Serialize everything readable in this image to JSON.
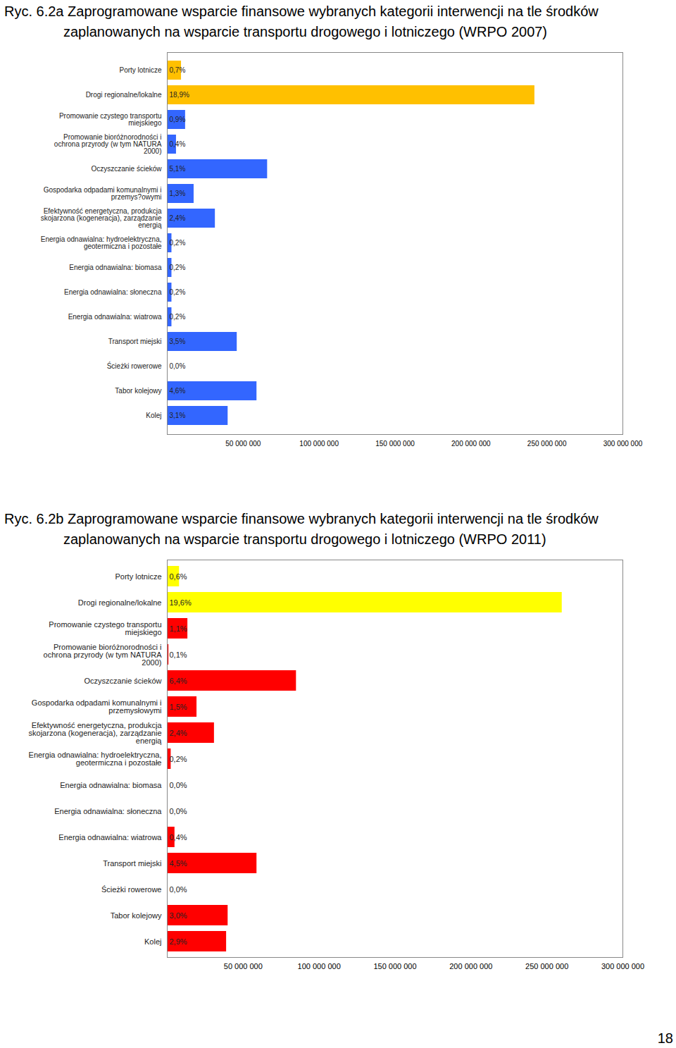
{
  "chart_data": [
    {
      "type": "bar",
      "orientation": "horizontal",
      "title": "Ryc. 6.2a Zaprogramowane wsparcie finansowe wybranych kategorii interwencji na tle środków zaplanowanych na wsparcie transportu drogowego i lotniczego (WRPO 2007)",
      "categories": [
        "Porty lotnicze",
        "Drogi regionalne/lokalne",
        "Promowanie czystego transportu miejskiego",
        "Promowanie bioróżnorodności i ochrona przyrody (w tym NATURA 2000)",
        "Oczyszczanie ścieków",
        "Gospodarka odpadami komunalnymi i przemys?owymi",
        "Efektywność energetyczna, produkcja skojarzona (kogeneracja), zarządzanie energią",
        "Energia odnawialna: hydroelektryczna, geotermiczna i pozostałe",
        "Energia odnawialna: biomasa",
        "Energia odnawialna: słoneczna",
        "Energia odnawialna: wiatrowa",
        "Transport miejski",
        "Ścieżki rowerowe",
        "Tabor kolejowy",
        "Kolej"
      ],
      "values": [
        9300000,
        242000000,
        12000000,
        6000000,
        66000000,
        17600000,
        31600000,
        3000000,
        3000000,
        3000000,
        3000000,
        46000000,
        0,
        59000000,
        40000000
      ],
      "share_labels": [
        "0,7%",
        "18,9%",
        "0,9%",
        "0,4%",
        "5,1%",
        "1,3%",
        "2,4%",
        "0,2%",
        "0,2%",
        "0,2%",
        "0,2%",
        "3,5%",
        "0,0%",
        "4,6%",
        "3,1%"
      ],
      "colors": [
        "#ffc000",
        "#ffc000",
        "#3366ff",
        "#3366ff",
        "#3366ff",
        "#3366ff",
        "#3366ff",
        "#3366ff",
        "#3366ff",
        "#3366ff",
        "#3366ff",
        "#3366ff",
        "#3366ff",
        "#3366ff",
        "#3366ff"
      ],
      "xlim": [
        0,
        300000000
      ],
      "xticks": [
        {
          "value": 50000000,
          "label": "50 000 000"
        },
        {
          "value": 100000000,
          "label": "100 000 000"
        },
        {
          "value": 150000000,
          "label": "150 000 000"
        },
        {
          "value": 200000000,
          "label": "200 000 000"
        },
        {
          "value": 250000000,
          "label": "250 000 000"
        },
        {
          "value": 300000000,
          "label": "300 000 000"
        }
      ]
    },
    {
      "type": "bar",
      "orientation": "horizontal",
      "title": "Ryc. 6.2b Zaprogramowane wsparcie finansowe wybranych kategorii interwencji na tle środków zaplanowanych na wsparcie transportu drogowego i lotniczego (WRPO 2011)",
      "categories": [
        "Porty lotnicze",
        "Drogi regionalne/lokalne",
        "Promowanie czystego transportu miejskiego",
        "Promowanie bioróżnorodności i ochrona przyrody (w tym NATURA 2000)",
        "Oczyszczanie ścieków",
        "Gospodarka odpadami komunalnymi i przemysłowymi",
        "Efektywność energetyczna, produkcja skojarzona (kogeneracja), zarządzanie energią",
        "Energia odnawialna: hydroelektryczna, geotermiczna i pozostałe",
        "Energia odnawialna: biomasa",
        "Energia odnawialna: słoneczna",
        "Energia odnawialna: wiatrowa",
        "Transport miejski",
        "Ścieżki rowerowe",
        "Tabor kolejowy",
        "Kolej"
      ],
      "values": [
        8000000,
        260000000,
        13500000,
        1000000,
        85000000,
        19500000,
        31000000,
        2500000,
        0,
        0,
        5000000,
        59000000,
        0,
        40000000,
        39000000
      ],
      "share_labels": [
        "0,6%",
        "19,6%",
        "1,1%",
        "0,1%",
        "6,4%",
        "1,5%",
        "2,4%",
        "0,2%",
        "0,0%",
        "0,0%",
        "0,4%",
        "4,5%",
        "0,0%",
        "3,0%",
        "2,9%"
      ],
      "colors": [
        "#ffff00",
        "#ffff00",
        "#ff0000",
        "#ff0000",
        "#ff0000",
        "#ff0000",
        "#ff0000",
        "#ff0000",
        "#ff0000",
        "#ff0000",
        "#ff0000",
        "#ff0000",
        "#ff0000",
        "#ff0000",
        "#ff0000"
      ],
      "xlim": [
        0,
        300000000
      ],
      "xticks": [
        {
          "value": 50000000,
          "label": "50 000 000"
        },
        {
          "value": 100000000,
          "label": "100 000 000"
        },
        {
          "value": 150000000,
          "label": "150 000 000"
        },
        {
          "value": 200000000,
          "label": "200 000 000"
        },
        {
          "value": 250000000,
          "label": "250 000 000"
        },
        {
          "value": 300000000,
          "label": "300 000 000"
        }
      ]
    }
  ],
  "page_number": "18"
}
